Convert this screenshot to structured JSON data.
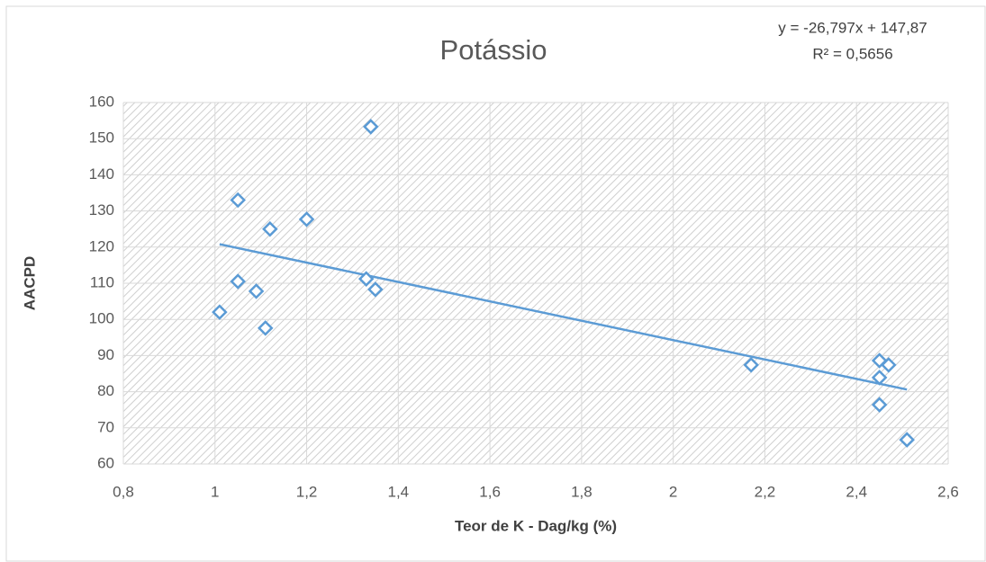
{
  "chart_data": {
    "type": "scatter",
    "title": "Potássio",
    "x_label": "Teor de K - Dag/kg (%)",
    "y_label": "AACPD",
    "annotations": [
      "y = -26,797x + 147,87",
      "R² = 0,5656"
    ],
    "x": [
      1.01,
      1.05,
      1.05,
      1.09,
      1.11,
      1.12,
      1.2,
      1.34,
      1.33,
      1.35,
      2.17,
      2.45,
      2.47,
      2.45,
      2.45,
      2.51
    ],
    "values": [
      102,
      133,
      110.5,
      107.8,
      97.6,
      125,
      127.7,
      153.3,
      111.2,
      108.3,
      87.4,
      88.6,
      87.4,
      83.9,
      76.4,
      66.7
    ],
    "color": "#5b9bd5",
    "trendline": {
      "x": [
        1.01,
        2.51
      ],
      "values": [
        120.8,
        80.6
      ],
      "color": "#5b9bd5"
    },
    "xlim": [
      0.8,
      2.6
    ],
    "xticks": [
      {
        "value": 0.8,
        "label": "0,8"
      },
      1,
      {
        "value": 1.2,
        "label": "1,2"
      },
      {
        "value": 1.4,
        "label": "1,4"
      },
      {
        "value": 1.6,
        "label": "1,6"
      },
      {
        "value": 1.8,
        "label": "1,8"
      },
      2,
      {
        "value": 2.2,
        "label": "2,2"
      },
      {
        "value": 2.4,
        "label": "2,4"
      },
      {
        "value": 2.6,
        "label": "2,6"
      }
    ],
    "ylim": [
      60,
      160
    ],
    "yticks": [
      60,
      70,
      80,
      90,
      100,
      110,
      120,
      130,
      140,
      150,
      160
    ],
    "grid": true
  }
}
